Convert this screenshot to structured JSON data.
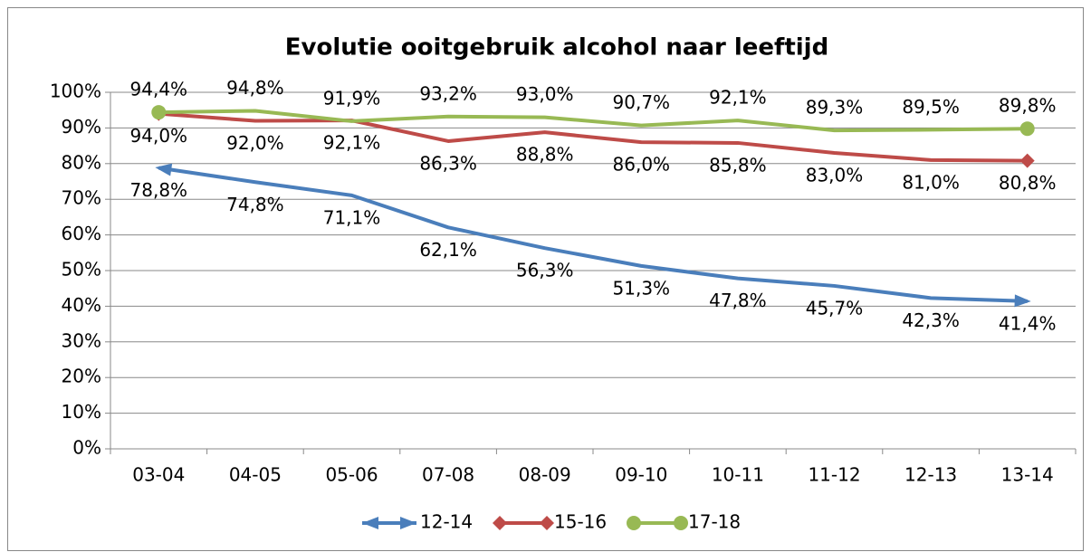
{
  "chart_data": {
    "type": "line",
    "title": "Evolutie ooitgebruik alcohol naar leeftijd",
    "categories": [
      "03-04",
      "04-05",
      "05-06",
      "07-08",
      "08-09",
      "09-10",
      "10-11",
      "11-12",
      "12-13",
      "13-14"
    ],
    "series": [
      {
        "name": "12-14",
        "color": "#4a7ebb",
        "marker": "arrow",
        "label_position": "below",
        "values": [
          78.8,
          74.8,
          71.1,
          62.1,
          56.3,
          51.3,
          47.8,
          45.7,
          42.3,
          41.4
        ],
        "value_labels": [
          "78,8%",
          "74,8%",
          "71,1%",
          "62,1%",
          "56,3%",
          "51,3%",
          "47,8%",
          "45,7%",
          "42,3%",
          "41,4%"
        ]
      },
      {
        "name": "15-16",
        "color": "#be4b48",
        "marker": "diamond",
        "label_position": "below",
        "values": [
          94.0,
          92.0,
          92.1,
          86.3,
          88.8,
          86.0,
          85.8,
          83.0,
          81.0,
          80.8
        ],
        "value_labels": [
          "94,0%",
          "92,0%",
          "92,1%",
          "86,3%",
          "88,8%",
          "86,0%",
          "85,8%",
          "83,0%",
          "81,0%",
          "80,8%"
        ]
      },
      {
        "name": "17-18",
        "color": "#98b954",
        "marker": "circle",
        "label_position": "above",
        "values": [
          94.4,
          94.8,
          91.9,
          93.2,
          93.0,
          90.7,
          92.1,
          89.3,
          89.5,
          89.8
        ],
        "value_labels": [
          "94,4%",
          "94,8%",
          "91,9%",
          "93,2%",
          "93,0%",
          "90,7%",
          "92,1%",
          "89,3%",
          "89,5%",
          "89,8%"
        ]
      }
    ],
    "ylim": [
      0,
      100
    ],
    "yticks": [
      {
        "value": 0,
        "label": "0%"
      },
      {
        "value": 10,
        "label": "10%"
      },
      {
        "value": 20,
        "label": "20%"
      },
      {
        "value": 30,
        "label": "30%"
      },
      {
        "value": 40,
        "label": "40%"
      },
      {
        "value": 50,
        "label": "50%"
      },
      {
        "value": 60,
        "label": "60%"
      },
      {
        "value": 70,
        "label": "70%"
      },
      {
        "value": 80,
        "label": "80%"
      },
      {
        "value": 90,
        "label": "90%"
      },
      {
        "value": 100,
        "label": "100%"
      }
    ],
    "grid": true,
    "legend": "bottom"
  }
}
